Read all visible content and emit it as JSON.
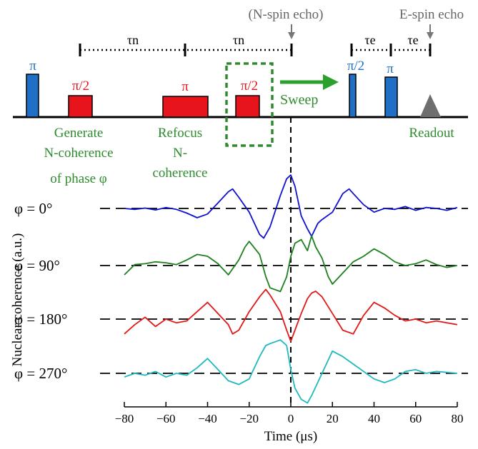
{
  "pulse_sequence": {
    "top_labels": {
      "n_echo": "(N-spin echo)",
      "e_echo": "E-spin echo"
    },
    "tau_n": "τn",
    "tau_e": "τe",
    "pulses": {
      "pi_1": "π",
      "pi_half_1": "π/2",
      "refocus": "π",
      "pi_half_2": "π/2",
      "pi_half_3": "π/2",
      "pi_2": "π"
    },
    "sweep_label": "Sweep",
    "captions": {
      "generate_1": "Generate",
      "generate_2": "N-coherence",
      "generate_3": "of phase φ",
      "refocus_1": "Refocus",
      "refocus_2": "N-",
      "refocus_3": "coherence",
      "readout": "Readout"
    },
    "colors": {
      "pi": "#1f6fc6",
      "pi_half": "#e8141c",
      "caption": "#2e8b2e",
      "sweep": "#2ca02c",
      "readout": "#6e6e6e"
    }
  },
  "chart_data": {
    "type": "line",
    "xlabel": "Time (μs)",
    "ylabel": "Nuclear coherence (a.u.)",
    "xlim": [
      -80,
      80
    ],
    "xticks": [
      "−80",
      "−60",
      "−40",
      "−20",
      "0",
      "20",
      "40",
      "60",
      "80"
    ],
    "series": [
      {
        "name": "φ = 0°",
        "color": "#1010d0",
        "x": [
          -80,
          -75,
          -70,
          -65,
          -60,
          -55,
          -50,
          -45,
          -40,
          -35,
          -30,
          -28,
          -25,
          -20,
          -15,
          -13,
          -10,
          -5,
          -2,
          0,
          2,
          5,
          8,
          10,
          13,
          15,
          20,
          25,
          28,
          30,
          35,
          40,
          45,
          50,
          55,
          60,
          65,
          70,
          75,
          80
        ],
        "y": [
          0.0,
          -0.05,
          0.02,
          -0.08,
          0.05,
          -0.05,
          -0.25,
          -0.5,
          -0.3,
          0.3,
          0.9,
          1.05,
          0.6,
          -0.2,
          -1.4,
          -1.6,
          -1.0,
          0.7,
          1.6,
          1.8,
          1.2,
          -0.4,
          -1.1,
          -1.5,
          -0.8,
          -0.6,
          -0.2,
          0.8,
          1.05,
          0.8,
          0.2,
          -0.2,
          0.0,
          -0.05,
          0.1,
          -0.1,
          0.05,
          0.0,
          -0.1,
          0.05
        ]
      },
      {
        "name": "φ = 90°",
        "color": "#1e7f1e",
        "x": [
          -80,
          -75,
          -70,
          -65,
          -60,
          -55,
          -50,
          -45,
          -40,
          -35,
          -30,
          -25,
          -22,
          -20,
          -15,
          -12,
          -10,
          -5,
          -2,
          0,
          2,
          5,
          8,
          10,
          12,
          15,
          18,
          20,
          25,
          30,
          35,
          40,
          45,
          50,
          55,
          60,
          65,
          70,
          75,
          80
        ],
        "y": [
          -0.5,
          0.05,
          0.1,
          0.2,
          0.15,
          0.05,
          0.3,
          0.6,
          0.5,
          0.1,
          -0.5,
          0.3,
          1.0,
          1.3,
          0.6,
          -0.6,
          -1.2,
          -1.4,
          -0.6,
          0.5,
          1.2,
          1.4,
          0.8,
          1.6,
          1.0,
          0.4,
          -0.6,
          -1.0,
          -0.4,
          0.2,
          0.5,
          0.9,
          0.6,
          0.2,
          0.0,
          0.1,
          0.3,
          0.05,
          -0.1,
          0.0
        ]
      },
      {
        "name": "φ = 180°",
        "color": "#e01818",
        "x": [
          -80,
          -75,
          -70,
          -65,
          -60,
          -55,
          -50,
          -45,
          -40,
          -35,
          -30,
          -28,
          -25,
          -20,
          -15,
          -12,
          -10,
          -5,
          -2,
          0,
          2,
          5,
          8,
          10,
          12,
          15,
          20,
          25,
          30,
          35,
          40,
          45,
          50,
          55,
          60,
          65,
          70,
          75,
          80
        ],
        "y": [
          -0.8,
          -0.3,
          0.1,
          -0.4,
          0.0,
          -0.2,
          -0.1,
          0.4,
          0.9,
          0.3,
          -0.3,
          -0.8,
          -0.6,
          0.4,
          1.2,
          1.6,
          1.3,
          0.4,
          -0.6,
          -1.2,
          -0.6,
          0.3,
          1.1,
          1.4,
          1.5,
          1.2,
          0.3,
          -0.6,
          -0.8,
          0.2,
          0.9,
          0.6,
          0.2,
          -0.1,
          0.0,
          -0.2,
          -0.1,
          -0.2,
          -0.3
        ]
      },
      {
        "name": "φ = 270°",
        "color": "#20b8c0",
        "x": [
          -80,
          -75,
          -70,
          -65,
          -60,
          -55,
          -50,
          -45,
          -40,
          -35,
          -30,
          -25,
          -20,
          -15,
          -12,
          -10,
          -5,
          -2,
          0,
          2,
          5,
          8,
          10,
          15,
          20,
          25,
          30,
          35,
          40,
          45,
          50,
          55,
          60,
          65,
          70,
          75,
          80
        ],
        "y": [
          -0.2,
          0.0,
          -0.1,
          0.1,
          -0.2,
          0.0,
          -0.1,
          0.3,
          0.8,
          0.2,
          -0.4,
          -0.6,
          -0.3,
          0.9,
          1.5,
          1.6,
          1.8,
          1.5,
          0.2,
          -0.8,
          -1.4,
          -1.6,
          -1.2,
          0.0,
          1.2,
          0.9,
          0.5,
          0.1,
          -0.3,
          -0.5,
          -0.3,
          0.1,
          0.2,
          0.0,
          0.1,
          0.05,
          0.0
        ]
      }
    ]
  }
}
